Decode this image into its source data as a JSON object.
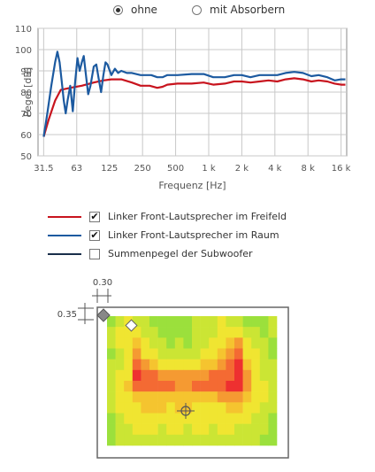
{
  "radio": [
    {
      "label": "ohne",
      "selected": true
    },
    {
      "label": "mit Absorbern",
      "selected": false
    }
  ],
  "chart_data": {
    "type": "line",
    "xlabel": "Frequenz [Hz]",
    "ylabel": "Pegel [dB]",
    "x_scale": "log",
    "xlim": [
      28,
      18000
    ],
    "ylim": [
      50,
      110
    ],
    "grid": true,
    "xticks": [
      31.5,
      63,
      125,
      250,
      500,
      1000,
      2000,
      4000,
      8000,
      16000
    ],
    "xtick_labels": [
      "31.5",
      "63",
      "125",
      "250",
      "500",
      "1 k",
      "2 k",
      "4 k",
      "8 k",
      "16 k"
    ],
    "yticks": [
      50,
      60,
      70,
      80,
      90,
      100,
      110
    ],
    "ytick_labels": [
      "50",
      "60",
      "70",
      "80",
      "90",
      "100",
      "110"
    ],
    "series": [
      {
        "name": "Linker Front-Lautsprecher im Freifeld",
        "color": "#c8141e",
        "points": [
          [
            31.5,
            59
          ],
          [
            35,
            67
          ],
          [
            40,
            76
          ],
          [
            45,
            81
          ],
          [
            55,
            82
          ],
          [
            70,
            83
          ],
          [
            90,
            84.5
          ],
          [
            110,
            85.5
          ],
          [
            130,
            86
          ],
          [
            160,
            86
          ],
          [
            200,
            84.5
          ],
          [
            240,
            83
          ],
          [
            290,
            83
          ],
          [
            340,
            82
          ],
          [
            380,
            82.5
          ],
          [
            420,
            83.5
          ],
          [
            520,
            84
          ],
          [
            700,
            84
          ],
          [
            900,
            84.5
          ],
          [
            1100,
            83.5
          ],
          [
            1400,
            84
          ],
          [
            1700,
            85
          ],
          [
            2000,
            85
          ],
          [
            2400,
            84.5
          ],
          [
            2900,
            85
          ],
          [
            3500,
            85.5
          ],
          [
            4200,
            85
          ],
          [
            5000,
            86
          ],
          [
            6000,
            86.5
          ],
          [
            7200,
            86
          ],
          [
            8600,
            85
          ],
          [
            10000,
            85.5
          ],
          [
            12000,
            85
          ],
          [
            14000,
            84
          ],
          [
            16000,
            83.5
          ],
          [
            17500,
            83.5
          ]
        ]
      },
      {
        "name": "Linker Front-Lautsprecher im Raum",
        "color": "#1c5aa0",
        "points": [
          [
            31.5,
            59
          ],
          [
            34,
            70
          ],
          [
            37,
            83
          ],
          [
            40,
            94
          ],
          [
            42,
            99
          ],
          [
            44,
            94
          ],
          [
            46,
            85
          ],
          [
            48,
            76
          ],
          [
            50,
            70
          ],
          [
            52,
            76
          ],
          [
            55,
            83
          ],
          [
            58,
            71
          ],
          [
            61,
            85
          ],
          [
            64,
            96
          ],
          [
            67,
            90
          ],
          [
            70,
            94
          ],
          [
            73,
            97
          ],
          [
            76,
            89
          ],
          [
            80,
            79
          ],
          [
            84,
            83
          ],
          [
            90,
            92
          ],
          [
            95,
            93
          ],
          [
            100,
            86
          ],
          [
            105,
            80
          ],
          [
            110,
            88
          ],
          [
            115,
            94
          ],
          [
            120,
            93
          ],
          [
            130,
            88
          ],
          [
            140,
            91
          ],
          [
            150,
            89
          ],
          [
            160,
            90
          ],
          [
            180,
            89
          ],
          [
            200,
            89
          ],
          [
            240,
            88
          ],
          [
            300,
            88
          ],
          [
            340,
            87
          ],
          [
            380,
            87
          ],
          [
            420,
            88
          ],
          [
            520,
            88
          ],
          [
            700,
            88.5
          ],
          [
            900,
            88.5
          ],
          [
            1100,
            87
          ],
          [
            1400,
            87
          ],
          [
            1700,
            88
          ],
          [
            2000,
            88
          ],
          [
            2400,
            87
          ],
          [
            2900,
            88
          ],
          [
            3500,
            88
          ],
          [
            4200,
            88
          ],
          [
            5000,
            89
          ],
          [
            6000,
            89.5
          ],
          [
            7200,
            89
          ],
          [
            8600,
            87.5
          ],
          [
            10000,
            88
          ],
          [
            12000,
            87
          ],
          [
            14000,
            85.5
          ],
          [
            16000,
            86
          ],
          [
            17500,
            86
          ]
        ]
      },
      {
        "name": "Summenpegel der Subwoofer",
        "color": "#1a2e4a",
        "points": []
      }
    ]
  },
  "legend": [
    {
      "label": "Linker Front-Lautsprecher im Freifeld",
      "color": "#c8141e",
      "checked": true
    },
    {
      "label": "Linker Front-Lautsprecher im Raum",
      "color": "#1c5aa0",
      "checked": true
    },
    {
      "label": "Summenpegel der Subwoofer",
      "color": "#1a2e4a",
      "checked": false
    }
  ],
  "check_mark": "✔",
  "room": {
    "dim_x_label": "0.30",
    "dim_y_label": "0.35",
    "heatmap_colors": [
      "#9be03c",
      "#cbe534",
      "#f0e531",
      "#f5c42f",
      "#f59a32",
      "#f46a33",
      "#ee3030"
    ],
    "heatmap_levels": [
      [
        0,
        1,
        2,
        1,
        1,
        0,
        0,
        0,
        0,
        0,
        1,
        1,
        1,
        2,
        1,
        1,
        0,
        0,
        0,
        1
      ],
      [
        1,
        2,
        2,
        2,
        1,
        1,
        0,
        0,
        0,
        0,
        1,
        1,
        1,
        2,
        2,
        2,
        1,
        1,
        0,
        1
      ],
      [
        1,
        2,
        2,
        3,
        2,
        1,
        1,
        0,
        1,
        0,
        1,
        1,
        2,
        2,
        3,
        4,
        2,
        1,
        1,
        0
      ],
      [
        0,
        1,
        2,
        4,
        2,
        2,
        1,
        1,
        1,
        1,
        1,
        2,
        2,
        3,
        4,
        5,
        2,
        2,
        1,
        0
      ],
      [
        1,
        1,
        2,
        5,
        4,
        3,
        2,
        2,
        2,
        2,
        2,
        3,
        3,
        4,
        5,
        6,
        3,
        2,
        1,
        1
      ],
      [
        1,
        2,
        2,
        6,
        5,
        5,
        4,
        4,
        4,
        4,
        4,
        4,
        5,
        5,
        5,
        6,
        4,
        2,
        1,
        1
      ],
      [
        1,
        2,
        3,
        5,
        5,
        5,
        5,
        5,
        4,
        4,
        5,
        5,
        5,
        5,
        6,
        6,
        4,
        2,
        2,
        1
      ],
      [
        1,
        2,
        2,
        3,
        3,
        3,
        3,
        3,
        3,
        3,
        3,
        3,
        3,
        4,
        4,
        4,
        3,
        2,
        2,
        1
      ],
      [
        1,
        2,
        2,
        2,
        3,
        3,
        3,
        2,
        3,
        3,
        2,
        2,
        2,
        2,
        3,
        3,
        2,
        2,
        1,
        1
      ],
      [
        0,
        1,
        2,
        2,
        2,
        2,
        2,
        2,
        2,
        2,
        2,
        2,
        2,
        2,
        2,
        2,
        2,
        1,
        1,
        0
      ],
      [
        0,
        1,
        1,
        2,
        2,
        2,
        1,
        2,
        2,
        1,
        2,
        2,
        1,
        2,
        2,
        1,
        1,
        1,
        1,
        0
      ],
      [
        0,
        1,
        1,
        1,
        1,
        1,
        1,
        1,
        1,
        1,
        1,
        1,
        1,
        1,
        1,
        1,
        1,
        1,
        0,
        0
      ]
    ]
  }
}
